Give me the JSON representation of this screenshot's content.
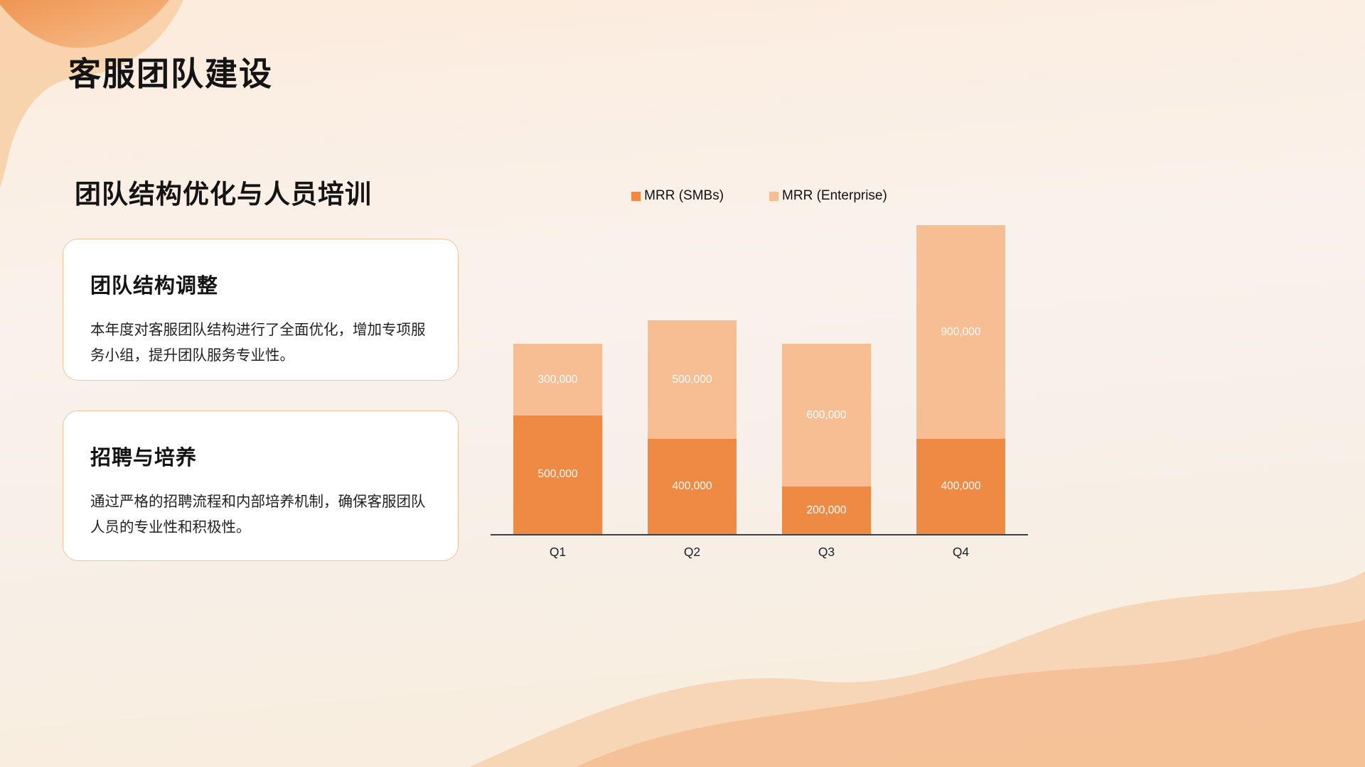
{
  "slide": {
    "title": "客服团队建设",
    "subtitle": "团队结构优化与人员培训"
  },
  "cards": [
    {
      "heading": "团队结构调整",
      "body": "本年度对客服团队结构进行了全面优化，增加专项服务小组，提升团队服务专业性。"
    },
    {
      "heading": "招聘与培养",
      "body": "通过严格的招聘流程和内部培养机制，确保客服团队人员的专业性和积极性。"
    }
  ],
  "colors": {
    "smb_orange": "#EF8A45",
    "enterprise_peach": "#F7BD93",
    "axis": "#39404D",
    "card_border": "#F2C59E"
  },
  "chart_data": {
    "type": "bar",
    "stacked": true,
    "title": "",
    "xlabel": "",
    "ylabel": "",
    "legend_position": "top",
    "grid": false,
    "ylim": [
      0,
      1300000
    ],
    "categories": [
      "Q1",
      "Q2",
      "Q3",
      "Q4"
    ],
    "series": [
      {
        "name": "MRR (SMBs)",
        "color": "#EF8A45",
        "values": [
          500000,
          400000,
          200000,
          400000
        ]
      },
      {
        "name": "MRR (Enterprise)",
        "color": "#F7BD93",
        "values": [
          300000,
          500000,
          600000,
          900000
        ]
      }
    ],
    "totals": [
      800000,
      900000,
      800000,
      1300000
    ],
    "value_labels_shown": true
  }
}
